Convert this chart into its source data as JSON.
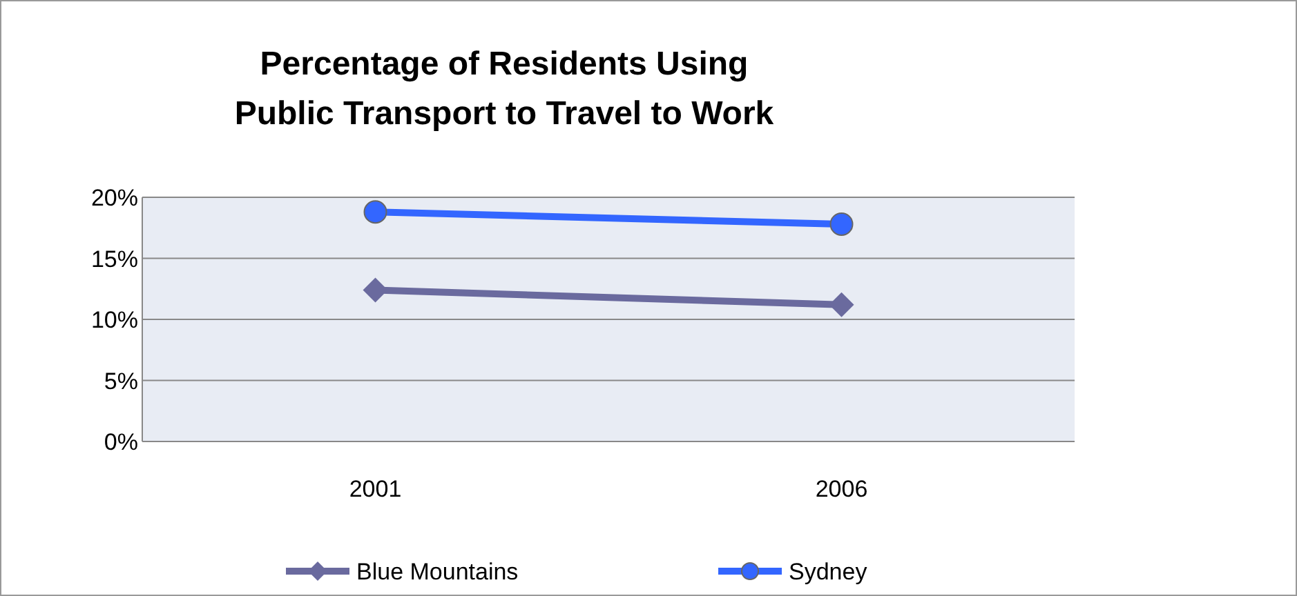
{
  "chart_data": {
    "type": "line",
    "title": "Percentage of Residents Using\nPublic Transport to Travel to Work",
    "categories": [
      "2001",
      "2006"
    ],
    "series": [
      {
        "name": "Blue Mountains",
        "color": "#6a6a9e",
        "values": [
          12.4,
          11.2
        ],
        "marker": "diamond"
      },
      {
        "name": "Sydney",
        "color": "#3366ff",
        "values": [
          18.8,
          17.8
        ],
        "marker": "circle"
      }
    ],
    "ylim": [
      0,
      20
    ],
    "yticks": [
      {
        "value": 0,
        "label": "0%"
      },
      {
        "value": 5,
        "label": "5%"
      },
      {
        "value": 10,
        "label": "10%"
      },
      {
        "value": 15,
        "label": "15%"
      },
      {
        "value": 20,
        "label": "20%"
      }
    ],
    "grid": "y",
    "legend": "bottom"
  }
}
